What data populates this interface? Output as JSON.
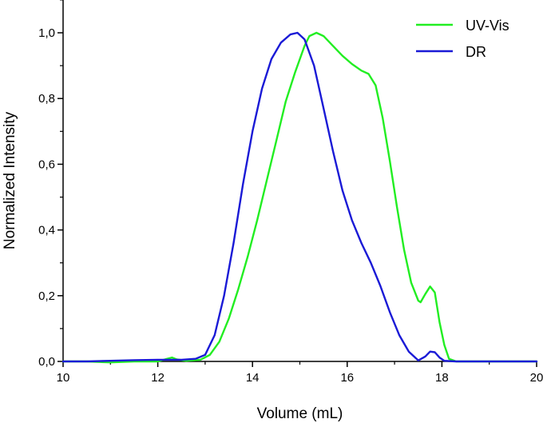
{
  "chart_data": {
    "type": "line",
    "xlabel": "Volume (mL)",
    "ylabel": "Normalized Intensity",
    "xlim": [
      10,
      20
    ],
    "ylim": [
      0,
      1.1
    ],
    "x_ticks": [
      10,
      12,
      14,
      16,
      18,
      20
    ],
    "x_tick_labels": [
      "10",
      "12",
      "14",
      "16",
      "18",
      "20"
    ],
    "y_ticks": [
      0.0,
      0.2,
      0.4,
      0.6,
      0.8,
      1.0
    ],
    "y_tick_labels": [
      "0,0",
      "0,2",
      "0,4",
      "0,6",
      "0,8",
      "1,0"
    ],
    "grid": false,
    "legend_position": "top-right",
    "series": [
      {
        "name": "UV-Vis",
        "color": "#22ee22",
        "points": [
          [
            10.0,
            0.0
          ],
          [
            10.5,
            0.0
          ],
          [
            11.0,
            -0.003
          ],
          [
            11.5,
            0.0
          ],
          [
            12.0,
            0.0
          ],
          [
            12.2,
            0.008
          ],
          [
            12.3,
            0.012
          ],
          [
            12.4,
            0.006
          ],
          [
            12.6,
            0.002
          ],
          [
            12.9,
            0.005
          ],
          [
            13.1,
            0.02
          ],
          [
            13.3,
            0.06
          ],
          [
            13.5,
            0.13
          ],
          [
            13.7,
            0.22
          ],
          [
            13.9,
            0.32
          ],
          [
            14.1,
            0.43
          ],
          [
            14.3,
            0.55
          ],
          [
            14.5,
            0.67
          ],
          [
            14.7,
            0.79
          ],
          [
            14.9,
            0.88
          ],
          [
            15.1,
            0.96
          ],
          [
            15.2,
            0.99
          ],
          [
            15.35,
            1.0
          ],
          [
            15.5,
            0.99
          ],
          [
            15.7,
            0.96
          ],
          [
            15.9,
            0.93
          ],
          [
            16.1,
            0.905
          ],
          [
            16.3,
            0.885
          ],
          [
            16.45,
            0.875
          ],
          [
            16.6,
            0.84
          ],
          [
            16.75,
            0.74
          ],
          [
            16.9,
            0.61
          ],
          [
            17.05,
            0.47
          ],
          [
            17.2,
            0.34
          ],
          [
            17.35,
            0.24
          ],
          [
            17.5,
            0.185
          ],
          [
            17.55,
            0.18
          ],
          [
            17.65,
            0.205
          ],
          [
            17.75,
            0.228
          ],
          [
            17.85,
            0.21
          ],
          [
            17.95,
            0.12
          ],
          [
            18.05,
            0.05
          ],
          [
            18.15,
            0.008
          ],
          [
            18.3,
            0.0
          ],
          [
            19.0,
            0.0
          ],
          [
            20.0,
            0.0
          ]
        ]
      },
      {
        "name": "DR",
        "color": "#1a1ad6",
        "points": [
          [
            10.0,
            0.0
          ],
          [
            10.5,
            0.0
          ],
          [
            11.0,
            0.002
          ],
          [
            11.5,
            0.004
          ],
          [
            12.0,
            0.005
          ],
          [
            12.5,
            0.005
          ],
          [
            12.8,
            0.008
          ],
          [
            13.0,
            0.02
          ],
          [
            13.2,
            0.08
          ],
          [
            13.4,
            0.2
          ],
          [
            13.6,
            0.36
          ],
          [
            13.8,
            0.54
          ],
          [
            14.0,
            0.7
          ],
          [
            14.2,
            0.83
          ],
          [
            14.4,
            0.92
          ],
          [
            14.6,
            0.97
          ],
          [
            14.8,
            0.995
          ],
          [
            14.95,
            1.0
          ],
          [
            15.1,
            0.98
          ],
          [
            15.3,
            0.9
          ],
          [
            15.5,
            0.77
          ],
          [
            15.7,
            0.64
          ],
          [
            15.9,
            0.52
          ],
          [
            16.1,
            0.43
          ],
          [
            16.3,
            0.36
          ],
          [
            16.5,
            0.3
          ],
          [
            16.7,
            0.23
          ],
          [
            16.9,
            0.15
          ],
          [
            17.1,
            0.08
          ],
          [
            17.3,
            0.03
          ],
          [
            17.5,
            0.003
          ],
          [
            17.65,
            0.015
          ],
          [
            17.75,
            0.03
          ],
          [
            17.85,
            0.028
          ],
          [
            17.95,
            0.012
          ],
          [
            18.05,
            0.002
          ],
          [
            18.3,
            0.0
          ],
          [
            19.0,
            0.0
          ],
          [
            20.0,
            0.0
          ]
        ]
      }
    ]
  }
}
